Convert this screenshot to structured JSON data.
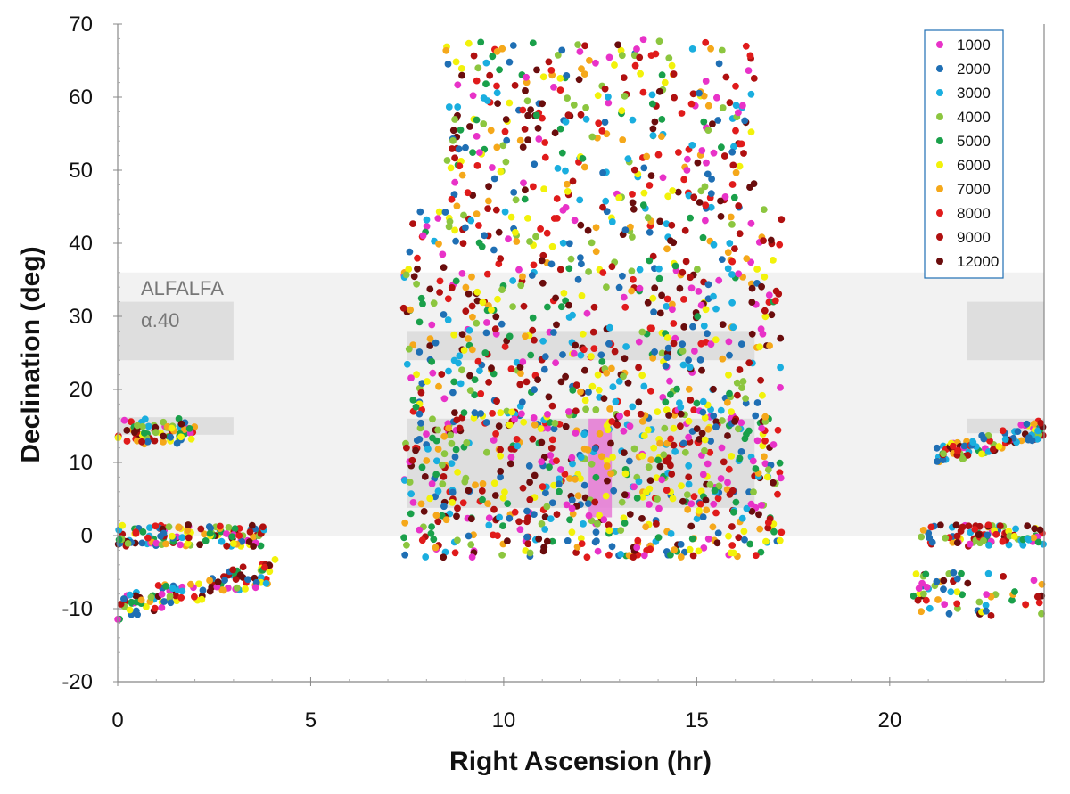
{
  "chart_data": {
    "type": "scatter",
    "xlabel": "Right Ascension  (hr)",
    "ylabel": "Declination  (deg)",
    "xlim": [
      0,
      24
    ],
    "ylim": [
      -20,
      70
    ],
    "xticks": [
      0,
      5,
      10,
      15,
      20
    ],
    "yticks": [
      -20,
      -10,
      0,
      10,
      20,
      30,
      40,
      50,
      60,
      70
    ],
    "legend_position": "top-right",
    "legend": [
      {
        "label": "1000",
        "color": "#e832c8"
      },
      {
        "label": "2000",
        "color": "#1f6fb4"
      },
      {
        "label": "3000",
        "color": "#1aaedf"
      },
      {
        "label": "4000",
        "color": "#8cc63f"
      },
      {
        "label": "5000",
        "color": "#1aa04a"
      },
      {
        "label": "6000",
        "color": "#f2f20a"
      },
      {
        "label": "7000",
        "color": "#f5a81a"
      },
      {
        "label": "8000",
        "color": "#e01b1b"
      },
      {
        "label": "9000",
        "color": "#b01010"
      },
      {
        "label": "12000",
        "color": "#6a0d0d"
      }
    ],
    "regions": {
      "alfalfa": {
        "label": "ALFALFA",
        "color": "#f2f2f2",
        "boxes": [
          {
            "x": [
              0,
              24
            ],
            "y": [
              0,
              36
            ]
          }
        ]
      },
      "alpha40": {
        "label": "α.40",
        "color": "#dedede",
        "boxes": [
          {
            "x": [
              0,
              3
            ],
            "y": [
              24,
              32
            ]
          },
          {
            "x": [
              0,
              3
            ],
            "y": [
              13.8,
              16.2
            ]
          },
          {
            "x": [
              7.5,
              16.5
            ],
            "y": [
              24,
              28
            ]
          },
          {
            "x": [
              7.5,
              16.5
            ],
            "y": [
              3.8,
              16
            ]
          },
          {
            "x": [
              22,
              24
            ],
            "y": [
              24,
              32
            ]
          },
          {
            "x": [
              22,
              24
            ],
            "y": [
              14,
              16
            ]
          }
        ]
      },
      "highlight": {
        "color": "#e87ad6",
        "box": {
          "x": [
            12.2,
            12.8
          ],
          "y": [
            2.5,
            16
          ]
        }
      }
    },
    "point_groups": [
      {
        "x": [
          0.0,
          2.0
        ],
        "y": [
          12.5,
          16.0
        ],
        "count": 70
      },
      {
        "x": [
          0.0,
          3.8
        ],
        "y": [
          -1.5,
          1.5
        ],
        "count": 130
      },
      {
        "x": [
          0.0,
          4.2
        ],
        "y": [
          -11.5,
          -3.0
        ],
        "count": 110,
        "trend": true
      },
      {
        "x": [
          7.4,
          17.2
        ],
        "y": [
          -3.0,
          17.5
        ],
        "count": 650
      },
      {
        "x": [
          7.4,
          17.2
        ],
        "y": [
          17.5,
          45.0
        ],
        "count": 520
      },
      {
        "x": [
          8.5,
          16.5
        ],
        "y": [
          45.0,
          68.0
        ],
        "count": 320
      },
      {
        "x": [
          20.6,
          24.0
        ],
        "y": [
          -11.0,
          -5.0
        ],
        "count": 60
      },
      {
        "x": [
          20.8,
          24.0
        ],
        "y": [
          -1.5,
          1.5
        ],
        "count": 90
      },
      {
        "x": [
          21.2,
          24.0
        ],
        "y": [
          9.5,
          16.0
        ],
        "count": 100,
        "trend": true
      }
    ]
  }
}
